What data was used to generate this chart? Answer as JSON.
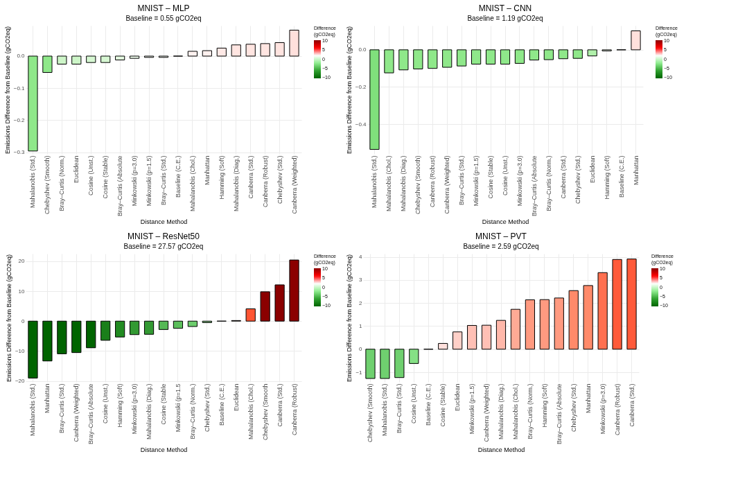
{
  "chart_data": [
    {
      "type": "bar",
      "title": "MNIST – MLP",
      "subtitle": "Baseline = 0.55 gCO2eq",
      "xlabel": "Distance Method",
      "ylabel": "Emissions Difference from Baseline (gCO2eq)",
      "clabel": "Difference\n(gCO2eq)",
      "cticks": [
        -10,
        -5,
        0,
        5,
        10
      ],
      "grid": true,
      "categories": [
        "Mahalanobis (Std.)",
        "Chebyshev (Smooth)",
        "Bray–Curtis (Norm.)",
        "Euclidean",
        "Cosine (Unst.)",
        "Cosine (Stable)",
        "Bray–Curtis (Absolute",
        "Minkowski (p=3.0)",
        "Minkowski (p=1.5)",
        "Bray–Curtis (Std.)",
        "Baseline (C.E.)",
        "Mahalanobis (Chol.)",
        "Manhattan",
        "Hamming (Soft)",
        "Mahalanobis (Diag.)",
        "Canberra (Std.)",
        "Canberra (Robust)",
        "Chebyshev (Std.)",
        "Canberra (Weighted)"
      ],
      "values": [
        -0.296,
        -0.051,
        -0.025,
        -0.025,
        -0.02,
        -0.02,
        -0.012,
        -0.007,
        -0.004,
        -0.004,
        0,
        0.015,
        0.017,
        0.025,
        0.035,
        0.037,
        0.039,
        0.042,
        0.081
      ],
      "colors": [
        "#8fe88a",
        "#8fe88a",
        "#cdf5c8",
        "#cdf5c8",
        "#d6f7d2",
        "#d6f7d2",
        "#e3f9df",
        "#eefbec",
        "#f4fcf2",
        "#f4fcf2",
        "#000000",
        "#fff2f0",
        "#fff0ee",
        "#ffe9e6",
        "#ffe5e1",
        "#ffe5e1",
        "#ffe5e1",
        "#ffe4e0",
        "#ffe0dc"
      ],
      "ylim": [
        -0.305,
        0.095
      ],
      "clim": [
        -10.5,
        10.5
      ],
      "yticks": [
        {
          "value": -0.3,
          "label": "−0.3"
        },
        {
          "value": -0.2,
          "label": "−0.2"
        },
        {
          "value": -0.1,
          "label": "−0.1"
        },
        {
          "value": 0,
          "label": "0.0"
        }
      ]
    },
    {
      "type": "bar",
      "title": "MNIST – CNN",
      "subtitle": "Baseline = 1.19 gCO2eq",
      "xlabel": "Distance Method",
      "ylabel": "Emissions Difference from Baseline (gCO2eq)",
      "clabel": "Difference\n(gCO2eq)",
      "cticks": [
        -10,
        -5,
        0,
        5,
        10
      ],
      "grid": true,
      "categories": [
        "Mahalanobis (Std.)",
        "Mahalanobis (Chol.)",
        "Mahalanobis (Diag.)",
        "Chebyshev (Smooth)",
        "Canberra (Robust)",
        "Canberra (Weighted)",
        "Bray–Curtis (Std.)",
        "Minkowski (p=1.5)",
        "Cosine (Stable)",
        "Cosine (Unst.)",
        "Minkowski (p=3.0)",
        "Bray–Curtis (Absolute",
        "Bray–Curtis (Norm.)",
        "Canberra (Std.)",
        "Chebyshev (Std.)",
        "Euclidean",
        "Hamming (Soft)",
        "Baseline (C.E.)",
        "Manhattan"
      ],
      "values": [
        -0.536,
        -0.124,
        -0.108,
        -0.103,
        -0.1,
        -0.094,
        -0.087,
        -0.077,
        -0.077,
        -0.077,
        -0.073,
        -0.055,
        -0.053,
        -0.048,
        -0.046,
        -0.033,
        -0.006,
        0,
        0.102
      ],
      "colors": [
        "#80e07c",
        "#8fe88a",
        "#8fe88a",
        "#8fe88a",
        "#8fe88a",
        "#8fe88a",
        "#8fe88a",
        "#8fe88a",
        "#8fe88a",
        "#8fe88a",
        "#8fe88a",
        "#8fe88a",
        "#8fe88a",
        "#8fe88a",
        "#8fe88a",
        "#b0f0aa",
        "#eefbec",
        "#000000",
        "#ffe0dc"
      ],
      "ylim": [
        -0.56,
        0.13
      ],
      "clim": [
        -10.5,
        10.5
      ],
      "yticks": [
        {
          "value": -0.4,
          "label": "−0.4"
        },
        {
          "value": -0.2,
          "label": "−0.2"
        },
        {
          "value": 0,
          "label": "0.0"
        }
      ]
    },
    {
      "type": "bar",
      "title": "MNIST – ResNet50",
      "subtitle": "Baseline = 27.57 gCO2eq",
      "xlabel": "Distance Method",
      "ylabel": "Emissions Difference from Baseline (gCO2eq)",
      "clabel": "Difference\n(gCO2eq)",
      "cticks": [
        -10,
        -5,
        0,
        5,
        10
      ],
      "grid": true,
      "categories": [
        "Mahalanobis (Std.)",
        "Manhattan",
        "Bray–Curtis (Std.)",
        "Canberra (Weighted)",
        "Bray–Curtis (Absolute",
        "Cosine (Unst.)",
        "Hamming (Soft)",
        "Minkowski (p=3.0)",
        "Mahalanobis (Diag.)",
        "Cosine (Stable",
        "Minkowski (p=1.5",
        "Bray–Curtis (Norm.)",
        "Chebyshev (Std.)",
        "Baseline (C.E.)",
        "Euclidean",
        "Mahalanobis (Chol.)",
        "Chebyshev (Smooth",
        "Canberra (Std.)",
        "Canberra (Robust)"
      ],
      "values": [
        -19.0,
        -13.3,
        -10.9,
        -10.5,
        -8.9,
        -6.4,
        -5.3,
        -4.5,
        -4.4,
        -2.8,
        -2.4,
        -1.8,
        -0.5,
        0,
        0.2,
        4.1,
        9.8,
        12.1,
        20.4
      ],
      "colors": [
        "#006400",
        "#006400",
        "#006400",
        "#006400",
        "#006400",
        "#1a7f1a",
        "#228b22",
        "#339933",
        "#339933",
        "#55b855",
        "#5cbf5c",
        "#6ccc6c",
        "#7fbf7f",
        "#000000",
        "#ffe0dc",
        "#ff5533",
        "#8b0000",
        "#8b0000",
        "#8b0000"
      ],
      "ylim": [
        -20.3,
        22.5
      ],
      "clim": [
        -10.5,
        10.5
      ],
      "yticks": [
        {
          "value": -20,
          "label": "−20"
        },
        {
          "value": -10,
          "label": "−10"
        },
        0,
        10,
        20
      ]
    },
    {
      "type": "bar",
      "title": "MNIST – PVT",
      "subtitle": "Baseline = 2.59 gCO2eq",
      "xlabel": "Distance Method",
      "ylabel": "Emissions Difference from Baseline (gCO2eq)",
      "clabel": "Difference\n(gCO2eq)",
      "cticks": [
        -10,
        -5,
        0,
        5,
        10
      ],
      "grid": true,
      "categories": [
        "Chebyshev (Smooth)",
        "Mahalanobis (Std.)",
        "Bray–Curtis (Std.)",
        "Cosine (Unst.)",
        "Baseline (C.E.)",
        "Cosine (Stable)",
        "Euclidean",
        "Minkowski (p=1.5)",
        "Canberra (Weighted)",
        "Mahalanobis (Diag.)",
        "Mahalanobis (Chol.)",
        "Bray–Curtis (Norm.)",
        "Hamming (Soft)",
        "Bray–Curtis (Absolute",
        "Chebyshev (Std.)",
        "Manhattan",
        "Minkowski (p=3.0)",
        "Canberra (Robust)",
        "Canberra (Std.)"
      ],
      "values": [
        -1.27,
        -1.27,
        -1.23,
        -0.62,
        0,
        0.25,
        0.75,
        1.03,
        1.04,
        1.25,
        1.73,
        2.14,
        2.15,
        2.22,
        2.54,
        2.76,
        3.32,
        3.89,
        3.91
      ],
      "colors": [
        "#6fd06f",
        "#6fd06f",
        "#6fd06f",
        "#85e085",
        "#000000",
        "#ffe0dc",
        "#ffd0c8",
        "#ffc0b5",
        "#ffc0b5",
        "#ffb8aa",
        "#ffaa95",
        "#ff9a80",
        "#ff9a80",
        "#ff9a80",
        "#ff8a6a",
        "#ff8a6a",
        "#ff7050",
        "#ff5a3a",
        "#ff5a3a"
      ],
      "ylim": [
        -1.42,
        4.14
      ],
      "clim": [
        -10.5,
        10.5
      ],
      "yticks": [
        {
          "value": -1,
          "label": "−1"
        },
        0,
        1,
        2,
        3,
        4
      ]
    }
  ]
}
